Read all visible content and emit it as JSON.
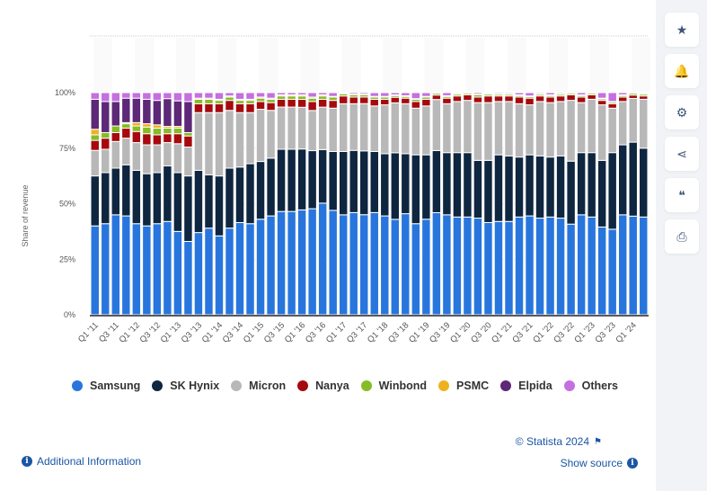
{
  "sidebar": {
    "buttons": [
      {
        "name": "star-icon",
        "glyph": "★",
        "label": "Favorite"
      },
      {
        "name": "bell-icon",
        "glyph": "🔔",
        "label": "Notifications"
      },
      {
        "name": "gear-icon",
        "glyph": "⚙",
        "label": "Settings"
      },
      {
        "name": "share-icon",
        "glyph": "⋖",
        "label": "Share"
      },
      {
        "name": "quote-icon",
        "glyph": "❝",
        "label": "Cite"
      },
      {
        "name": "print-icon",
        "glyph": "⎙",
        "label": "Print"
      }
    ]
  },
  "footer": {
    "copyright": "© Statista 2024",
    "show_source": "Show source",
    "additional_info": "Additional Information",
    "info_glyph": "i",
    "flag_glyph": "⚑"
  },
  "chart_data": {
    "type": "bar",
    "stacked": true,
    "ylabel": "Share of revenue",
    "xlabel": "",
    "ylim": [
      0,
      100
    ],
    "yticks": [
      "0%",
      "25%",
      "50%",
      "75%",
      "100%"
    ],
    "grid": true,
    "legend_position": "bottom",
    "categories": [
      "Q1 '11",
      "Q2 '11",
      "Q3 '11",
      "Q4 '11",
      "Q1 '12",
      "Q2 '12",
      "Q3 '12",
      "Q4 '12",
      "Q1 '13",
      "Q2 '13",
      "Q3 '13",
      "Q4 '13",
      "Q1 '14",
      "Q2 '14",
      "Q3 '14",
      "Q4 '14",
      "Q1 '15",
      "Q2 '15",
      "Q3 '15",
      "Q4 '15",
      "Q1 '16",
      "Q2 '16",
      "Q3 '16",
      "Q4 '16",
      "Q1 '17",
      "Q2 '17",
      "Q3 '17",
      "Q4 '17",
      "Q1 '18",
      "Q2 '18",
      "Q3 '18",
      "Q4 '18",
      "Q1 '19",
      "Q2 '19",
      "Q3 '19",
      "Q4 '19",
      "Q1 '20",
      "Q2 '20",
      "Q3 '20",
      "Q4 '20",
      "Q1 '21",
      "Q2 '21",
      "Q3 '21",
      "Q4 '21",
      "Q1 '22",
      "Q2 '22",
      "Q3 '22",
      "Q4 '22",
      "Q1 '23",
      "Q2 '23",
      "Q3 '23",
      "Q4 '23",
      "Q1 '24",
      "Q2 '24"
    ],
    "tick_labels_shown": [
      "Q1 '11",
      "Q3 '11",
      "Q1 '12",
      "Q3 '12",
      "Q1 '13",
      "Q3 '13",
      "Q1 '14",
      "Q3 '14",
      "Q1 '15",
      "Q3 '15",
      "Q1 '16",
      "Q3 '16",
      "Q1 '17",
      "Q3 '17",
      "Q1 '18",
      "Q3 '18",
      "Q1 '19",
      "Q3 '19",
      "Q1 '20",
      "Q3 '20",
      "Q1 '21",
      "Q3 '21",
      "Q1 '22",
      "Q3 '22",
      "Q1 '23",
      "Q3 '23",
      "Q1 '24"
    ],
    "series": [
      {
        "name": "Samsung",
        "color": "#2876dd",
        "values": [
          40,
          41,
          45,
          44.5,
          41,
          40,
          41,
          42,
          37.5,
          33,
          37,
          39,
          35.5,
          39,
          41.5,
          41,
          43,
          44.5,
          46.5,
          46.5,
          46.5,
          47.5,
          50,
          47,
          45,
          46,
          45.5,
          46,
          44.5,
          43,
          45.5,
          41,
          43,
          46,
          45,
          44,
          44,
          43.5,
          41.5,
          42,
          42,
          44,
          44.5,
          43.5,
          44,
          43.5,
          41,
          45,
          44,
          39.5,
          38.5,
          45,
          44,
          44
        ]
      },
      {
        "name": "SK Hynix",
        "color": "#0f2640",
        "values": [
          22.5,
          23,
          21,
          23,
          24,
          23.5,
          23,
          25,
          26.5,
          29.5,
          28,
          24,
          27,
          27,
          25,
          27,
          26,
          26,
          28,
          28,
          27,
          26,
          24,
          26.5,
          28.5,
          28,
          29,
          27.5,
          28,
          30,
          27,
          31,
          29,
          28,
          28,
          29,
          29,
          26,
          28,
          30,
          29.5,
          27,
          27.5,
          28,
          27,
          28,
          28.5,
          28,
          29,
          30,
          34.5,
          31.5,
          33,
          31
        ]
      },
      {
        "name": "Micron",
        "color": "#b8b8b8",
        "values": [
          11.5,
          10.5,
          12,
          12,
          12.5,
          13,
          12.5,
          10.5,
          13,
          13,
          26,
          28,
          28.5,
          26,
          24.5,
          23,
          23.5,
          21.5,
          19,
          19,
          18.5,
          18,
          19,
          19.5,
          21.5,
          21,
          21.5,
          20.5,
          22,
          22.5,
          22.5,
          21,
          22,
          23,
          22,
          23,
          23.5,
          26,
          26,
          24,
          24.5,
          24,
          22.5,
          24.5,
          24.5,
          24.5,
          27.5,
          22.5,
          24,
          25,
          20,
          19.5,
          19.5,
          22
        ]
      },
      {
        "name": "Nanya",
        "color": "#a60a0e",
        "values": [
          4.5,
          5,
          4,
          4.5,
          5,
          5,
          4.5,
          4,
          4.5,
          5,
          4,
          4,
          4,
          4.5,
          4,
          4,
          3.5,
          3.5,
          3.5,
          3.5,
          3.5,
          4,
          3.5,
          3.5,
          3.5,
          3,
          3,
          3,
          2.5,
          2.5,
          2.5,
          3,
          3,
          2,
          2.5,
          2.5,
          2.5,
          2.5,
          3,
          2.5,
          2.5,
          3,
          3,
          2.5,
          2.5,
          2.5,
          2.5,
          2.5,
          2,
          2,
          2,
          2,
          1.5,
          1.5
        ]
      },
      {
        "name": "Winbond",
        "color": "#86bc25",
        "values": [
          2.5,
          2.5,
          3,
          2,
          2.5,
          3,
          3,
          2.5,
          2.5,
          1.5,
          2,
          2,
          1.5,
          1.5,
          1.5,
          1.5,
          1.5,
          1.5,
          1.5,
          1.5,
          1.5,
          1.5,
          1.5,
          1.5,
          1,
          1,
          1,
          1,
          1,
          0.8,
          0.8,
          1,
          1,
          0.8,
          0.8,
          0.8,
          0.7,
          1,
          0.8,
          0.7,
          0.7,
          0.7,
          0.7,
          0.7,
          0.7,
          0.7,
          0.7,
          0.7,
          0.7,
          0.7,
          0.7,
          0.7,
          0.8,
          0.8
        ]
      },
      {
        "name": "PSMC",
        "color": "#efb21e",
        "values": [
          2.5,
          0,
          0,
          0.5,
          1.5,
          1.5,
          1.5,
          0.8,
          0.8,
          0,
          0.5,
          0.5,
          0.5,
          0.5,
          0.5,
          0.5,
          0.5,
          0.5,
          0.5,
          0.5,
          0.5,
          0.5,
          0.5,
          0.3,
          0.3,
          0.3,
          0.3,
          0.3,
          0.3,
          0.3,
          0.3,
          0.3,
          0.3,
          0.3,
          0.3,
          0.3,
          0.3,
          0.3,
          0.3,
          0.3,
          0.3,
          0.3,
          0.3,
          0.3,
          0.3,
          0.3,
          0.3,
          0.3,
          0.3,
          0.3,
          0.3,
          0.3,
          0.3,
          0.3
        ]
      },
      {
        "name": "Elpida",
        "color": "#5c2877",
        "values": [
          13.5,
          14,
          11,
          11,
          11,
          11,
          11,
          12.5,
          11.5,
          14,
          0,
          0,
          0,
          0,
          0,
          0,
          0,
          0,
          0,
          0,
          0,
          0,
          0,
          0,
          0,
          0,
          0,
          0,
          0,
          0,
          0,
          0,
          0,
          0,
          0,
          0,
          0,
          0,
          0,
          0,
          0,
          0,
          0,
          0,
          0,
          0,
          0,
          0,
          0,
          0,
          0,
          0,
          0,
          0
        ]
      },
      {
        "name": "Others",
        "color": "#c56fe0",
        "values": [
          3,
          4,
          4,
          2.5,
          2.5,
          3,
          3.5,
          2.7,
          3.7,
          4,
          2.5,
          2.5,
          3,
          1.5,
          3,
          3,
          2,
          2.5,
          1,
          1,
          1,
          2,
          1,
          1.7,
          0.2,
          0.7,
          0.7,
          1.7,
          1.7,
          1,
          1.4,
          2.7,
          1.7,
          0,
          1.4,
          0.4,
          0,
          0.7,
          0.4,
          0.5,
          0.5,
          1,
          1.5,
          0.5,
          1,
          0.5,
          0,
          1,
          0,
          2.5,
          4,
          1,
          0,
          0.4
        ]
      }
    ]
  }
}
